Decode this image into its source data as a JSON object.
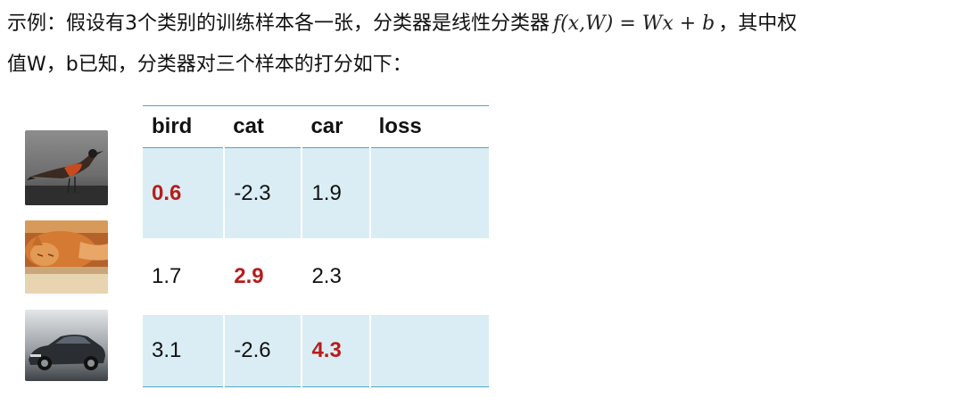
{
  "intro": {
    "line1_prefix": "示例：假设有3个类别的训练样本各一张，分类器是线性分类器",
    "formula": "f(x,W) = Wx + b",
    "line1_suffix": "，其中权",
    "line2": "值W，b已知，分类器对三个样本的打分如下："
  },
  "images": {
    "bird": "bird-photo",
    "cat": "cat-photo",
    "car": "car-photo"
  },
  "table": {
    "headers": [
      "bird",
      "cat",
      "car",
      "loss"
    ],
    "rows": [
      {
        "cells": [
          "0.6",
          "-2.3",
          "1.9",
          ""
        ],
        "highlight_index": 0
      },
      {
        "cells": [
          "1.7",
          "2.9",
          "2.3",
          ""
        ],
        "highlight_index": 1
      },
      {
        "cells": [
          "3.1",
          "-2.6",
          "4.3",
          ""
        ],
        "highlight_index": 2
      }
    ]
  },
  "colors": {
    "highlight": "#b81c1c",
    "row_shade": "#daedf4",
    "rule": "#4aa8c4"
  }
}
